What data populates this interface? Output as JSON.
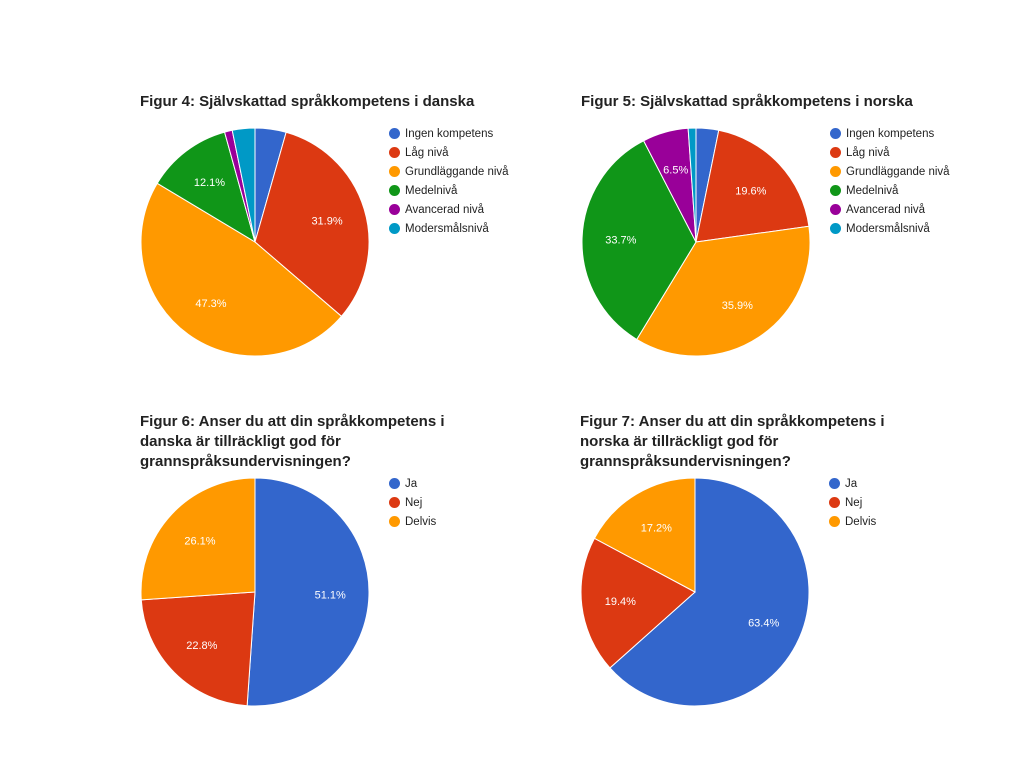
{
  "chart_data": [
    {
      "type": "pie",
      "title": "Figur 4: Självskattad språkkompetens i danska",
      "legend_position": "right",
      "slices": [
        {
          "label": "Ingen kompetens",
          "value": 4.4,
          "color": "#3366cc"
        },
        {
          "label": "Låg nivå",
          "value": 31.9,
          "color": "#dc3912",
          "value_label": "31.9%"
        },
        {
          "label": "Grundläggande nivå",
          "value": 47.3,
          "color": "#ff9900",
          "value_label": "47.3%"
        },
        {
          "label": "Medelnivå",
          "value": 12.1,
          "color": "#109618",
          "value_label": "12.1%"
        },
        {
          "label": "Avancerad nivå",
          "value": 1.1,
          "color": "#990099"
        },
        {
          "label": "Modersmålsnivå",
          "value": 3.2,
          "color": "#0099c6"
        }
      ]
    },
    {
      "type": "pie",
      "title": "Figur 5: Självskattad språkkompetens i norska",
      "legend_position": "right",
      "slices": [
        {
          "label": "Ingen kompetens",
          "value": 3.2,
          "color": "#3366cc"
        },
        {
          "label": "Låg nivå",
          "value": 19.6,
          "color": "#dc3912",
          "value_label": "19.6%"
        },
        {
          "label": "Grundläggande nivå",
          "value": 35.9,
          "color": "#ff9900",
          "value_label": "35.9%"
        },
        {
          "label": "Medelnivå",
          "value": 33.7,
          "color": "#109618",
          "value_label": "33.7%"
        },
        {
          "label": "Avancerad nivå",
          "value": 6.5,
          "color": "#990099",
          "value_label": "6.5%"
        },
        {
          "label": "Modersmålsnivå",
          "value": 1.1,
          "color": "#0099c6"
        }
      ]
    },
    {
      "type": "pie",
      "title": "Figur 6: Anser du att din språkkompetens i danska är tillräckligt god för grannspråksundervisningen?",
      "legend_position": "right",
      "slices": [
        {
          "label": "Ja",
          "value": 51.1,
          "color": "#3366cc",
          "value_label": "51.1%"
        },
        {
          "label": "Nej",
          "value": 22.8,
          "color": "#dc3912",
          "value_label": "22.8%"
        },
        {
          "label": "Delvis",
          "value": 26.1,
          "color": "#ff9900",
          "value_label": "26.1%"
        }
      ]
    },
    {
      "type": "pie",
      "title": "Figur 7: Anser du att din språkkompetens i norska är tillräckligt god för grannspråksundervisningen?",
      "legend_position": "right",
      "slices": [
        {
          "label": "Ja",
          "value": 63.4,
          "color": "#3366cc",
          "value_label": "63.4%"
        },
        {
          "label": "Nej",
          "value": 19.4,
          "color": "#dc3912",
          "value_label": "19.4%"
        },
        {
          "label": "Delvis",
          "value": 17.2,
          "color": "#ff9900",
          "value_label": "17.2%"
        }
      ]
    }
  ]
}
